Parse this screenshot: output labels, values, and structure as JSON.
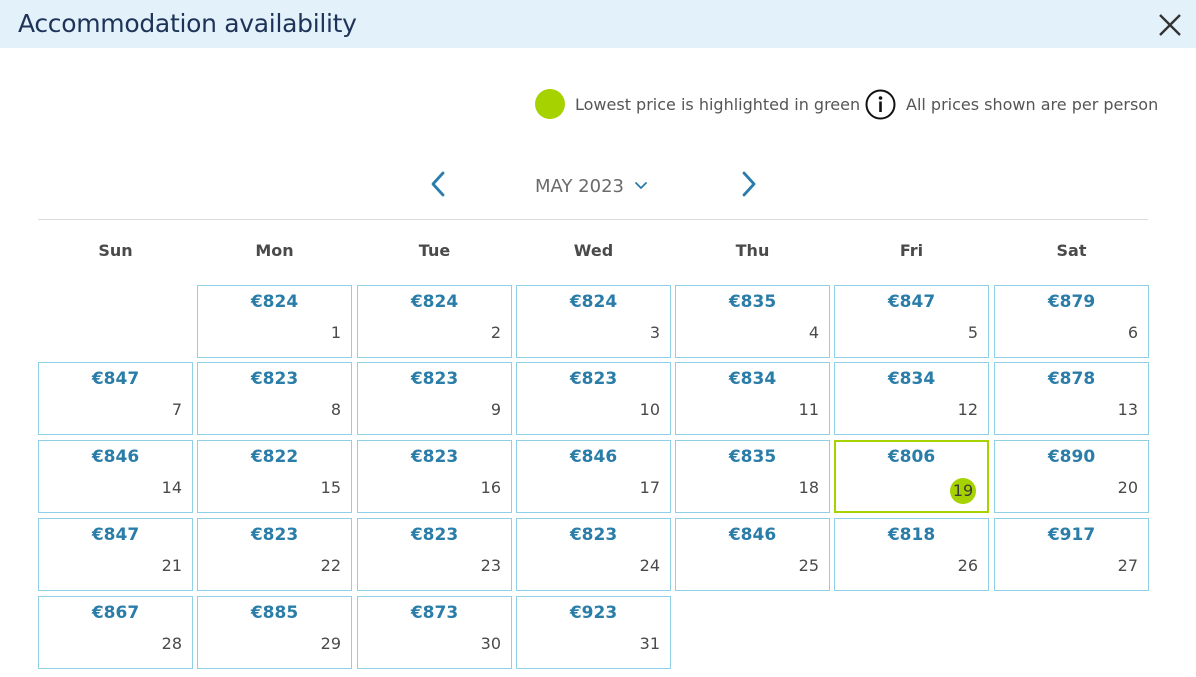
{
  "header": {
    "title": "Accommodation availability",
    "close_icon": "close-icon"
  },
  "legend": {
    "lowest_text": "Lowest price is highlighted in green",
    "info_text": "All prices shown are per person",
    "lowest_color": "#a6d200",
    "info_icon": "info-icon"
  },
  "calendar": {
    "month_label": "MAY 2023",
    "weekdays": [
      "Sun",
      "Mon",
      "Tue",
      "Wed",
      "Thu",
      "Fri",
      "Sat"
    ],
    "first_weekday_index": 1,
    "lowest_day": "19",
    "days": [
      {
        "day": "1",
        "price": "€824"
      },
      {
        "day": "2",
        "price": "€824"
      },
      {
        "day": "3",
        "price": "€824"
      },
      {
        "day": "4",
        "price": "€835"
      },
      {
        "day": "5",
        "price": "€847"
      },
      {
        "day": "6",
        "price": "€879"
      },
      {
        "day": "7",
        "price": "€847"
      },
      {
        "day": "8",
        "price": "€823"
      },
      {
        "day": "9",
        "price": "€823"
      },
      {
        "day": "10",
        "price": "€823"
      },
      {
        "day": "11",
        "price": "€834"
      },
      {
        "day": "12",
        "price": "€834"
      },
      {
        "day": "13",
        "price": "€878"
      },
      {
        "day": "14",
        "price": "€846"
      },
      {
        "day": "15",
        "price": "€822"
      },
      {
        "day": "16",
        "price": "€823"
      },
      {
        "day": "17",
        "price": "€846"
      },
      {
        "day": "18",
        "price": "€835"
      },
      {
        "day": "19",
        "price": "€806"
      },
      {
        "day": "20",
        "price": "€890"
      },
      {
        "day": "21",
        "price": "€847"
      },
      {
        "day": "22",
        "price": "€823"
      },
      {
        "day": "23",
        "price": "€823"
      },
      {
        "day": "24",
        "price": "€823"
      },
      {
        "day": "25",
        "price": "€846"
      },
      {
        "day": "26",
        "price": "€818"
      },
      {
        "day": "27",
        "price": "€917"
      },
      {
        "day": "28",
        "price": "€867"
      },
      {
        "day": "29",
        "price": "€885"
      },
      {
        "day": "30",
        "price": "€873"
      },
      {
        "day": "31",
        "price": "€923"
      }
    ]
  },
  "colors": {
    "header_bg": "#e3f1fb",
    "price": "#2a7da8",
    "cell_border": "#8fd0e6",
    "title": "#1d3358"
  }
}
